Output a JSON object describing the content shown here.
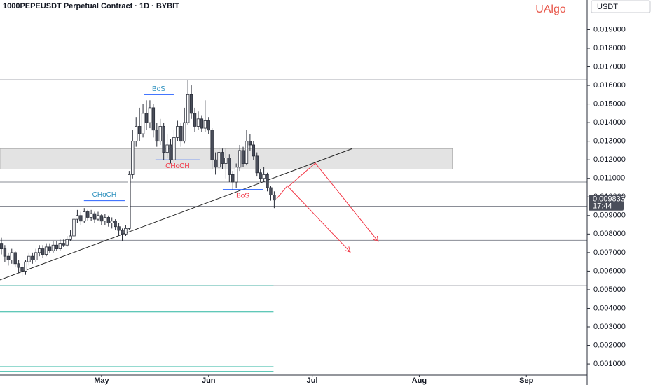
{
  "chart_data": {
    "type": "candlestick",
    "title": "1000PEPEUSDT Perpetual Contract · 1D · BYBIT",
    "watermark": "UAlgo",
    "currency": "USDT",
    "x": [
      -29,
      -28,
      -27,
      -26,
      -25,
      -24,
      -23,
      -22,
      -21,
      -20,
      -19,
      -18,
      -17,
      -16,
      -15,
      -14,
      -13,
      -12,
      -11,
      -10,
      -9,
      -8,
      -7,
      -6,
      -5,
      -4,
      -3,
      -2,
      -1,
      0,
      1,
      2,
      3,
      4,
      5,
      6,
      7,
      8,
      9,
      10,
      11,
      12,
      13,
      14,
      15,
      16,
      17,
      18,
      19,
      20,
      21,
      22,
      23,
      24,
      25,
      26,
      27,
      28,
      29,
      30,
      31,
      32,
      33,
      34,
      35,
      36,
      37,
      38,
      39,
      40,
      41,
      42,
      43,
      44,
      45,
      46,
      47,
      48,
      49,
      50
    ],
    "open": [
      0.0075,
      0.0072,
      0.0068,
      0.0066,
      0.007,
      0.0064,
      0.0062,
      0.006,
      0.0065,
      0.0068,
      0.0066,
      0.007,
      0.0072,
      0.0069,
      0.0073,
      0.0071,
      0.0074,
      0.0072,
      0.0075,
      0.0074,
      0.0077,
      0.0079,
      0.0088,
      0.009,
      0.0087,
      0.0092,
      0.0089,
      0.0091,
      0.0088,
      0.009,
      0.0087,
      0.0089,
      0.0086,
      0.0087,
      0.0084,
      0.0082,
      0.008,
      0.0083,
      0.0112,
      0.013,
      0.0138,
      0.0134,
      0.0145,
      0.014,
      0.0148,
      0.0136,
      0.013,
      0.0138,
      0.0124,
      0.0128,
      0.012,
      0.0132,
      0.0138,
      0.013,
      0.014,
      0.0155,
      0.0145,
      0.0138,
      0.0142,
      0.0137,
      0.0141,
      0.0136,
      0.012,
      0.0116,
      0.0124,
      0.0118,
      0.0121,
      0.0112,
      0.0108,
      0.0116,
      0.0125,
      0.0118,
      0.013,
      0.0128,
      0.0122,
      0.0113,
      0.011,
      0.0112,
      0.0105,
      0.0101
    ],
    "high": [
      0.0078,
      0.0074,
      0.007,
      0.0072,
      0.0071,
      0.0066,
      0.0064,
      0.0066,
      0.007,
      0.007,
      0.0072,
      0.0074,
      0.0074,
      0.0075,
      0.0075,
      0.0076,
      0.0076,
      0.0077,
      0.0077,
      0.0079,
      0.0082,
      0.009,
      0.0093,
      0.0092,
      0.0094,
      0.0093,
      0.0093,
      0.0092,
      0.0092,
      0.0091,
      0.0091,
      0.009,
      0.0089,
      0.0088,
      0.0086,
      0.0083,
      0.0085,
      0.0114,
      0.0136,
      0.0143,
      0.0148,
      0.015,
      0.0152,
      0.0152,
      0.015,
      0.014,
      0.0142,
      0.014,
      0.0134,
      0.0131,
      0.0136,
      0.0141,
      0.014,
      0.0148,
      0.0163,
      0.016,
      0.0148,
      0.0146,
      0.0144,
      0.0152,
      0.0143,
      0.0137,
      0.0124,
      0.0127,
      0.0126,
      0.0126,
      0.0123,
      0.0114,
      0.0118,
      0.0128,
      0.0127,
      0.0136,
      0.0134,
      0.013,
      0.0124,
      0.0115,
      0.0116,
      0.0113,
      0.0106,
      0.0103
    ],
    "low": [
      0.0069,
      0.0065,
      0.0063,
      0.0064,
      0.0062,
      0.0059,
      0.0057,
      0.0058,
      0.0063,
      0.0064,
      0.0065,
      0.0068,
      0.0067,
      0.0068,
      0.007,
      0.007,
      0.0071,
      0.0071,
      0.0073,
      0.0073,
      0.0076,
      0.0078,
      0.0086,
      0.0085,
      0.0086,
      0.0087,
      0.0087,
      0.0086,
      0.0087,
      0.0085,
      0.0085,
      0.0084,
      0.0083,
      0.0082,
      0.0079,
      0.0076,
      0.0079,
      0.0082,
      0.011,
      0.0127,
      0.013,
      0.0132,
      0.0136,
      0.0137,
      0.0132,
      0.0127,
      0.0128,
      0.012,
      0.0121,
      0.0118,
      0.0119,
      0.013,
      0.0127,
      0.0129,
      0.0139,
      0.0142,
      0.0135,
      0.0136,
      0.0135,
      0.0135,
      0.0134,
      0.0115,
      0.0112,
      0.0114,
      0.0115,
      0.011,
      0.0108,
      0.0104,
      0.0105,
      0.0114,
      0.0116,
      0.0117,
      0.0125,
      0.012,
      0.0111,
      0.0108,
      0.0108,
      0.0103,
      0.0098,
      0.0094
    ],
    "close": [
      0.0072,
      0.0068,
      0.0066,
      0.007,
      0.0064,
      0.0062,
      0.006,
      0.0065,
      0.0068,
      0.0066,
      0.007,
      0.0072,
      0.0069,
      0.0073,
      0.0071,
      0.0074,
      0.0072,
      0.0075,
      0.0074,
      0.0077,
      0.0079,
      0.0088,
      0.009,
      0.0087,
      0.0092,
      0.0089,
      0.0091,
      0.0088,
      0.009,
      0.0087,
      0.0089,
      0.0086,
      0.0087,
      0.0084,
      0.0082,
      0.008,
      0.0083,
      0.0112,
      0.013,
      0.0138,
      0.0134,
      0.0145,
      0.014,
      0.0148,
      0.0136,
      0.013,
      0.0138,
      0.0124,
      0.0128,
      0.012,
      0.0132,
      0.0138,
      0.013,
      0.014,
      0.0155,
      0.0145,
      0.0138,
      0.0142,
      0.0137,
      0.0141,
      0.0136,
      0.012,
      0.0116,
      0.0124,
      0.0118,
      0.0121,
      0.0112,
      0.0108,
      0.0116,
      0.0125,
      0.0118,
      0.013,
      0.0128,
      0.0122,
      0.0113,
      0.011,
      0.0112,
      0.0105,
      0.0101,
      0.009833
    ],
    "up_color": "#ffffff",
    "down_color": "#4a4e5a",
    "edge_color": "#2a2e39",
    "xlim": [
      -29.4,
      140.6
    ],
    "ylim": [
      0.0004,
      0.0206
    ],
    "xticks": [
      {
        "value": 0,
        "label": "May"
      },
      {
        "value": 31,
        "label": "Jun"
      },
      {
        "value": 61,
        "label": "Jul"
      },
      {
        "value": 92,
        "label": "Aug"
      },
      {
        "value": 123,
        "label": "Sep"
      }
    ],
    "yticks": [
      {
        "value": 0.001,
        "label": "0.001000"
      },
      {
        "value": 0.002,
        "label": "0.002000"
      },
      {
        "value": 0.003,
        "label": "0.003000"
      },
      {
        "value": 0.004,
        "label": "0.004000"
      },
      {
        "value": 0.005,
        "label": "0.005000"
      },
      {
        "value": 0.006,
        "label": "0.006000"
      },
      {
        "value": 0.007,
        "label": "0.007000"
      },
      {
        "value": 0.008,
        "label": "0.008000"
      },
      {
        "value": 0.009,
        "label": "0.009000"
      },
      {
        "value": 0.01,
        "label": "0.010000"
      },
      {
        "value": 0.011,
        "label": "0.011000"
      },
      {
        "value": 0.012,
        "label": "0.012000"
      },
      {
        "value": 0.013,
        "label": "0.013000"
      },
      {
        "value": 0.014,
        "label": "0.014000"
      },
      {
        "value": 0.015,
        "label": "0.015000"
      },
      {
        "value": 0.016,
        "label": "0.016000"
      },
      {
        "value": 0.017,
        "label": "0.017000"
      },
      {
        "value": 0.018,
        "label": "0.018000"
      },
      {
        "value": 0.019,
        "label": "0.019000"
      }
    ],
    "last_price": 0.009833,
    "countdown": "17:44",
    "levels": [
      0.0163,
      0.0108,
      0.0095,
      0.00766,
      0.00522
    ],
    "level_color": "#8a8d96",
    "support_levels": [
      0.00522,
      0.0038,
      0.00085,
      0.0006
    ],
    "support_x": [
      -29.4,
      49.8
    ],
    "support_color": "#2bb6a0",
    "zone": [
      0.0115,
      0.0126
    ],
    "zone_x": [
      -29.4,
      101.6
    ],
    "trendline": {
      "x": [
        -29.4,
        72.6
      ],
      "y": [
        0.00553,
        0.0126
      ],
      "color": "#222222"
    },
    "annotations": [
      {
        "text": "BoS",
        "x": [
          12.2,
          20.9
        ],
        "y": 0.0155,
        "side": "above",
        "color": "#2a8fbd"
      },
      {
        "text": "CHoCH",
        "x": [
          -5.1,
          6.7
        ],
        "y": 0.0098,
        "side": "above",
        "color": "#2a8fbd"
      },
      {
        "text": "CHoCH",
        "x": [
          15.6,
          28.4
        ],
        "y": 0.012,
        "side": "below",
        "color": "#f23645"
      },
      {
        "text": "BoS",
        "x": [
          35.1,
          46.7
        ],
        "y": 0.0104,
        "side": "below",
        "color": "#f23645"
      }
    ],
    "annotation_line_color": "#2962ff",
    "projections": [
      {
        "x": [
          50.7,
          53.8,
          72.0
        ],
        "y": [
          0.0099,
          0.0106,
          0.00703
        ]
      },
      {
        "x": [
          54.2,
          61.9,
          80.1
        ],
        "y": [
          0.01058,
          0.01182,
          0.0076
        ]
      }
    ],
    "projection_color": "#f23645"
  }
}
